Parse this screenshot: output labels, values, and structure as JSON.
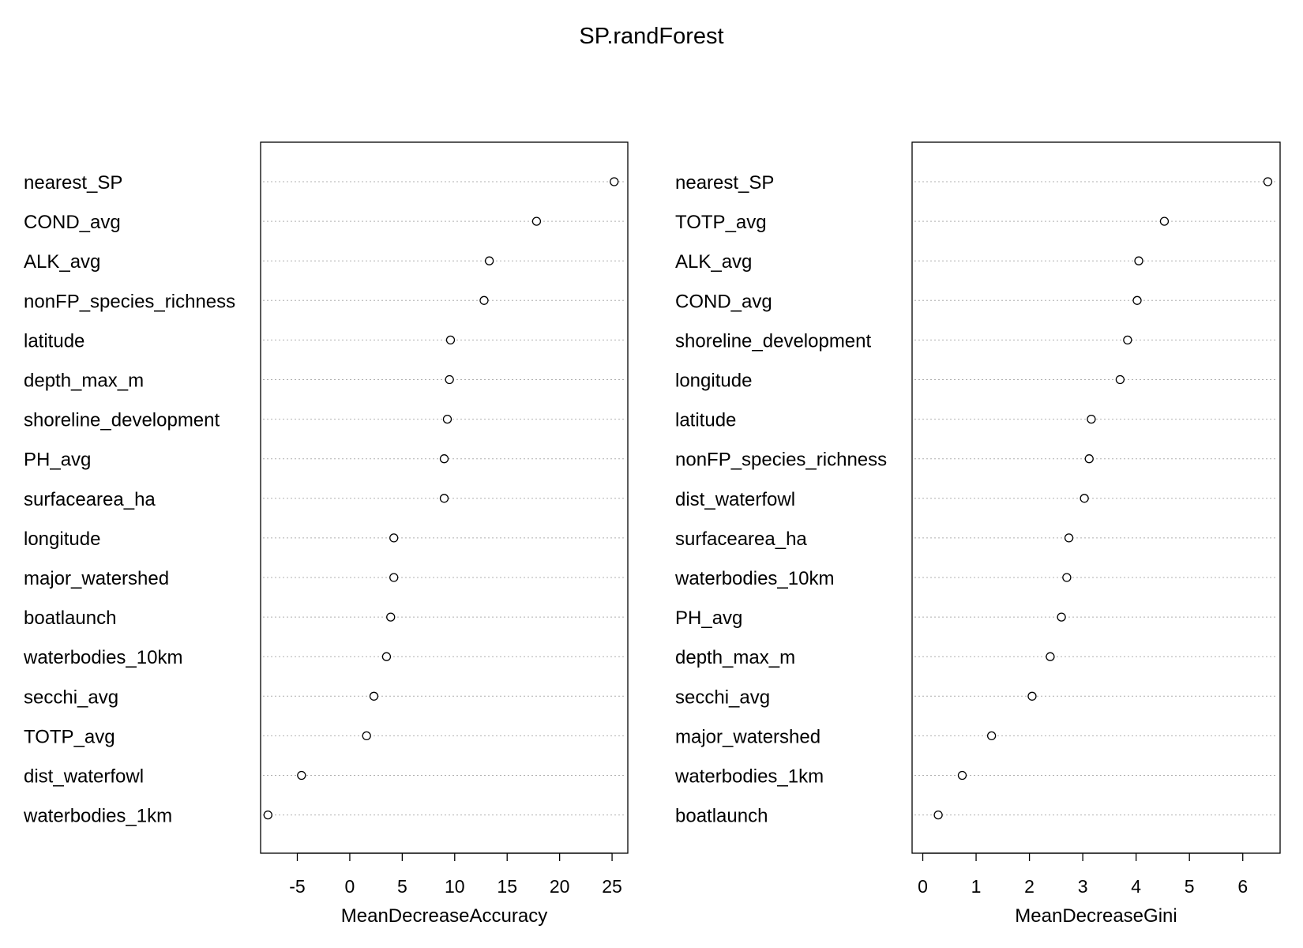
{
  "chart_data": {
    "type": "scatter",
    "title": "SP.randForest",
    "panels": [
      {
        "xlabel": "MeanDecreaseAccuracy",
        "xlim": [
          -8.5,
          26.5
        ],
        "xticks": [
          -5,
          0,
          5,
          10,
          15,
          20,
          25
        ],
        "grid": "horizontal dotted lines",
        "points": [
          {
            "label": "nearest_SP",
            "value": 25.2
          },
          {
            "label": "COND_avg",
            "value": 17.8
          },
          {
            "label": "ALK_avg",
            "value": 13.3
          },
          {
            "label": "nonFP_species_richness",
            "value": 12.8
          },
          {
            "label": "latitude",
            "value": 9.6
          },
          {
            "label": "depth_max_m",
            "value": 9.5
          },
          {
            "label": "shoreline_development",
            "value": 9.3
          },
          {
            "label": "PH_avg",
            "value": 9.0
          },
          {
            "label": "surfacearea_ha",
            "value": 9.0
          },
          {
            "label": "longitude",
            "value": 4.2
          },
          {
            "label": "major_watershed",
            "value": 4.2
          },
          {
            "label": "boatlaunch",
            "value": 3.9
          },
          {
            "label": "waterbodies_10km",
            "value": 3.5
          },
          {
            "label": "secchi_avg",
            "value": 2.3
          },
          {
            "label": "TOTP_avg",
            "value": 1.6
          },
          {
            "label": "dist_waterfowl",
            "value": -4.6
          },
          {
            "label": "waterbodies_1km",
            "value": -7.8
          }
        ]
      },
      {
        "xlabel": "MeanDecreaseGini",
        "xlim": [
          -0.2,
          6.7
        ],
        "xticks": [
          0,
          1,
          2,
          3,
          4,
          5,
          6
        ],
        "grid": "horizontal dotted lines",
        "points": [
          {
            "label": "nearest_SP",
            "value": 6.47
          },
          {
            "label": "TOTP_avg",
            "value": 4.53
          },
          {
            "label": "ALK_avg",
            "value": 4.05
          },
          {
            "label": "COND_avg",
            "value": 4.02
          },
          {
            "label": "shoreline_development",
            "value": 3.84
          },
          {
            "label": "longitude",
            "value": 3.7
          },
          {
            "label": "latitude",
            "value": 3.16
          },
          {
            "label": "nonFP_species_richness",
            "value": 3.12
          },
          {
            "label": "dist_waterfowl",
            "value": 3.03
          },
          {
            "label": "surfacearea_ha",
            "value": 2.74
          },
          {
            "label": "waterbodies_10km",
            "value": 2.7
          },
          {
            "label": "PH_avg",
            "value": 2.6
          },
          {
            "label": "depth_max_m",
            "value": 2.39
          },
          {
            "label": "secchi_avg",
            "value": 2.05
          },
          {
            "label": "major_watershed",
            "value": 1.29
          },
          {
            "label": "waterbodies_1km",
            "value": 0.74
          },
          {
            "label": "boatlaunch",
            "value": 0.29
          }
        ]
      }
    ]
  }
}
